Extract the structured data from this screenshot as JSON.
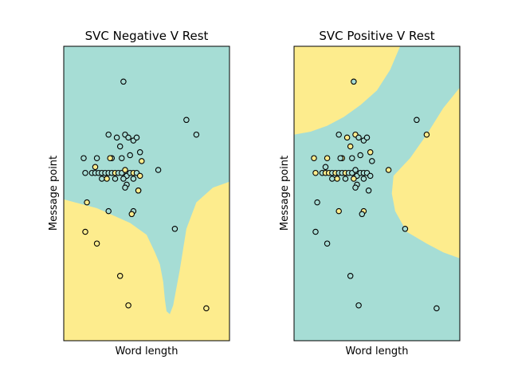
{
  "chart_data": [
    {
      "type": "scatter",
      "title": "SVC Negative V Rest",
      "xlabel": "Word length",
      "ylabel": "Message point",
      "xticks": false,
      "yticks": false,
      "grid": false,
      "xlim": [
        0,
        100
      ],
      "ylim": [
        0,
        100
      ],
      "region_colors": {
        "rest": "#a6ddd5",
        "class": "#fdec8d"
      },
      "boundary": {
        "description_of_class_region": "lower area below a curving boundary",
        "curve": [
          [
            0,
            48
          ],
          [
            20,
            45
          ],
          [
            40,
            40
          ],
          [
            50,
            36
          ],
          [
            55,
            30
          ],
          [
            58,
            26
          ],
          [
            60,
            20
          ],
          [
            61,
            14
          ],
          [
            62,
            10
          ],
          [
            64,
            9
          ],
          [
            66,
            12
          ],
          [
            70,
            24
          ],
          [
            74,
            38
          ],
          [
            80,
            47
          ],
          [
            90,
            52
          ],
          [
            100,
            54
          ]
        ]
      },
      "points": [
        {
          "x": 36,
          "y": 88,
          "cls": "rest"
        },
        {
          "x": 74,
          "y": 75,
          "cls": "rest"
        },
        {
          "x": 80,
          "y": 70,
          "cls": "rest"
        },
        {
          "x": 27,
          "y": 70,
          "cls": "rest"
        },
        {
          "x": 32,
          "y": 69,
          "cls": "rest"
        },
        {
          "x": 37,
          "y": 70,
          "cls": "rest"
        },
        {
          "x": 39,
          "y": 69,
          "cls": "rest"
        },
        {
          "x": 42,
          "y": 68,
          "cls": "rest"
        },
        {
          "x": 44,
          "y": 69,
          "cls": "rest"
        },
        {
          "x": 34,
          "y": 66,
          "cls": "rest"
        },
        {
          "x": 46,
          "y": 64,
          "cls": "rest"
        },
        {
          "x": 40,
          "y": 63,
          "cls": "rest"
        },
        {
          "x": 12,
          "y": 62,
          "cls": "rest"
        },
        {
          "x": 20,
          "y": 62,
          "cls": "rest"
        },
        {
          "x": 29,
          "y": 62,
          "cls": "rest"
        },
        {
          "x": 35,
          "y": 62,
          "cls": "rest"
        },
        {
          "x": 28,
          "y": 62,
          "cls": "class"
        },
        {
          "x": 47,
          "y": 61,
          "cls": "class"
        },
        {
          "x": 19,
          "y": 59,
          "cls": "class"
        },
        {
          "x": 57,
          "y": 58,
          "cls": "rest"
        },
        {
          "x": 13,
          "y": 57,
          "cls": "rest"
        },
        {
          "x": 17,
          "y": 57,
          "cls": "rest"
        },
        {
          "x": 19,
          "y": 57,
          "cls": "rest"
        },
        {
          "x": 21,
          "y": 57,
          "cls": "rest"
        },
        {
          "x": 23,
          "y": 57,
          "cls": "rest"
        },
        {
          "x": 25,
          "y": 57,
          "cls": "rest"
        },
        {
          "x": 27,
          "y": 57,
          "cls": "rest"
        },
        {
          "x": 29,
          "y": 57,
          "cls": "rest"
        },
        {
          "x": 31,
          "y": 57,
          "cls": "class"
        },
        {
          "x": 33,
          "y": 57,
          "cls": "rest"
        },
        {
          "x": 35,
          "y": 57,
          "cls": "rest"
        },
        {
          "x": 37,
          "y": 58,
          "cls": "class"
        },
        {
          "x": 38,
          "y": 56,
          "cls": "rest"
        },
        {
          "x": 40,
          "y": 57,
          "cls": "rest"
        },
        {
          "x": 42,
          "y": 57,
          "cls": "class"
        },
        {
          "x": 44,
          "y": 57,
          "cls": "rest"
        },
        {
          "x": 31,
          "y": 55,
          "cls": "rest"
        },
        {
          "x": 26,
          "y": 55,
          "cls": "class"
        },
        {
          "x": 36,
          "y": 55,
          "cls": "rest"
        },
        {
          "x": 42,
          "y": 55,
          "cls": "rest"
        },
        {
          "x": 46,
          "y": 56,
          "cls": "class"
        },
        {
          "x": 23,
          "y": 55,
          "cls": "rest"
        },
        {
          "x": 38,
          "y": 53,
          "cls": "rest"
        },
        {
          "x": 37,
          "y": 52,
          "cls": "rest"
        },
        {
          "x": 45,
          "y": 51,
          "cls": "rest"
        },
        {
          "x": 45,
          "y": 51,
          "cls": "class"
        },
        {
          "x": 14,
          "y": 47,
          "cls": "class"
        },
        {
          "x": 27,
          "y": 44,
          "cls": "rest"
        },
        {
          "x": 42,
          "y": 44,
          "cls": "rest"
        },
        {
          "x": 41,
          "y": 43,
          "cls": "class"
        },
        {
          "x": 13,
          "y": 37,
          "cls": "class"
        },
        {
          "x": 67,
          "y": 38,
          "cls": "rest"
        },
        {
          "x": 20,
          "y": 33,
          "cls": "class"
        },
        {
          "x": 34,
          "y": 22,
          "cls": "class"
        },
        {
          "x": 39,
          "y": 12,
          "cls": "class"
        },
        {
          "x": 86,
          "y": 11,
          "cls": "class"
        }
      ]
    },
    {
      "type": "scatter",
      "title": "SVC Positive V Rest",
      "xlabel": "Word length",
      "ylabel": "Message point",
      "xticks": false,
      "yticks": false,
      "grid": false,
      "xlim": [
        0,
        100
      ],
      "ylim": [
        0,
        100
      ],
      "region_colors": {
        "rest": "#a6ddd5",
        "class": "#fdec8d"
      },
      "boundary": {
        "description_of_class_region": "top-left corner area and a right-side bulge",
        "top_left_curve": [
          [
            0,
            70
          ],
          [
            10,
            71
          ],
          [
            20,
            73
          ],
          [
            30,
            76
          ],
          [
            40,
            80
          ],
          [
            50,
            85
          ],
          [
            58,
            92
          ],
          [
            64,
            100
          ]
        ],
        "right_curve": [
          [
            100,
            86
          ],
          [
            90,
            79
          ],
          [
            80,
            70
          ],
          [
            70,
            62
          ],
          [
            60,
            56
          ],
          [
            59,
            50
          ],
          [
            61,
            44
          ],
          [
            68,
            37
          ],
          [
            80,
            33
          ],
          [
            90,
            30
          ],
          [
            100,
            28
          ]
        ]
      },
      "points": [
        {
          "x": 36,
          "y": 88,
          "cls": "rest"
        },
        {
          "x": 74,
          "y": 75,
          "cls": "rest"
        },
        {
          "x": 80,
          "y": 70,
          "cls": "class"
        },
        {
          "x": 27,
          "y": 70,
          "cls": "rest"
        },
        {
          "x": 32,
          "y": 69,
          "cls": "class"
        },
        {
          "x": 37,
          "y": 70,
          "cls": "class"
        },
        {
          "x": 39,
          "y": 69,
          "cls": "rest"
        },
        {
          "x": 42,
          "y": 68,
          "cls": "rest"
        },
        {
          "x": 44,
          "y": 69,
          "cls": "rest"
        },
        {
          "x": 34,
          "y": 66,
          "cls": "class"
        },
        {
          "x": 46,
          "y": 64,
          "cls": "class"
        },
        {
          "x": 40,
          "y": 63,
          "cls": "rest"
        },
        {
          "x": 12,
          "y": 62,
          "cls": "class"
        },
        {
          "x": 20,
          "y": 62,
          "cls": "class"
        },
        {
          "x": 29,
          "y": 62,
          "cls": "class"
        },
        {
          "x": 35,
          "y": 62,
          "cls": "rest"
        },
        {
          "x": 28,
          "y": 62,
          "cls": "rest"
        },
        {
          "x": 47,
          "y": 61,
          "cls": "rest"
        },
        {
          "x": 19,
          "y": 59,
          "cls": "rest"
        },
        {
          "x": 57,
          "y": 58,
          "cls": "class"
        },
        {
          "x": 13,
          "y": 57,
          "cls": "class"
        },
        {
          "x": 17,
          "y": 57,
          "cls": "rest"
        },
        {
          "x": 19,
          "y": 57,
          "cls": "class"
        },
        {
          "x": 21,
          "y": 57,
          "cls": "class"
        },
        {
          "x": 23,
          "y": 57,
          "cls": "rest"
        },
        {
          "x": 25,
          "y": 57,
          "cls": "class"
        },
        {
          "x": 27,
          "y": 57,
          "cls": "rest"
        },
        {
          "x": 29,
          "y": 57,
          "cls": "rest"
        },
        {
          "x": 31,
          "y": 57,
          "cls": "class"
        },
        {
          "x": 33,
          "y": 57,
          "cls": "rest"
        },
        {
          "x": 35,
          "y": 57,
          "cls": "rest"
        },
        {
          "x": 37,
          "y": 58,
          "cls": "rest"
        },
        {
          "x": 38,
          "y": 56,
          "cls": "rest"
        },
        {
          "x": 40,
          "y": 57,
          "cls": "rest"
        },
        {
          "x": 42,
          "y": 57,
          "cls": "rest"
        },
        {
          "x": 44,
          "y": 57,
          "cls": "rest"
        },
        {
          "x": 31,
          "y": 55,
          "cls": "rest"
        },
        {
          "x": 26,
          "y": 55,
          "cls": "class"
        },
        {
          "x": 36,
          "y": 55,
          "cls": "class"
        },
        {
          "x": 42,
          "y": 55,
          "cls": "rest"
        },
        {
          "x": 46,
          "y": 56,
          "cls": "rest"
        },
        {
          "x": 23,
          "y": 55,
          "cls": "rest"
        },
        {
          "x": 38,
          "y": 53,
          "cls": "rest"
        },
        {
          "x": 37,
          "y": 52,
          "cls": "rest"
        },
        {
          "x": 45,
          "y": 51,
          "cls": "rest"
        },
        {
          "x": 14,
          "y": 47,
          "cls": "rest"
        },
        {
          "x": 27,
          "y": 44,
          "cls": "class"
        },
        {
          "x": 42,
          "y": 44,
          "cls": "class"
        },
        {
          "x": 41,
          "y": 43,
          "cls": "rest"
        },
        {
          "x": 13,
          "y": 37,
          "cls": "rest"
        },
        {
          "x": 67,
          "y": 38,
          "cls": "rest"
        },
        {
          "x": 20,
          "y": 33,
          "cls": "rest"
        },
        {
          "x": 34,
          "y": 22,
          "cls": "rest"
        },
        {
          "x": 39,
          "y": 12,
          "cls": "rest"
        },
        {
          "x": 86,
          "y": 11,
          "cls": "rest"
        }
      ]
    }
  ]
}
